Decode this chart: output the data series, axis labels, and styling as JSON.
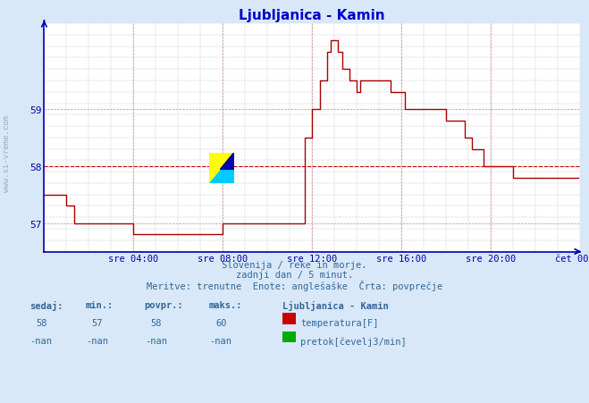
{
  "title": "Ljubljanica - Kamin",
  "bg_color": "#d8e8f8",
  "plot_bg_color": "#ffffff",
  "line_color": "#aa0000",
  "avg_line_color": "#cc0000",
  "grid_major_color": "#cc8888",
  "grid_minor_color": "#ccccdd",
  "axis_color": "#0000aa",
  "title_color": "#0000cc",
  "text_color": "#336699",
  "yticks": [
    57,
    58,
    59
  ],
  "ylim": [
    56.5,
    60.5
  ],
  "xlim": [
    0,
    288
  ],
  "avg_value": 58.0,
  "footer_line1": "Slovenija / reke in morje.",
  "footer_line2": "zadnji dan / 5 minut.",
  "footer_line3": "Meritve: trenutne  Enote: anglešaške  Črta: povprečje",
  "legend_title": "Ljubljanica - Kamin",
  "legend_temp_label": "temperatura[F]",
  "legend_flow_label": "pretok[čevelj3/min]",
  "table_headers": [
    "sedaj:",
    "min.:",
    "povpr.:",
    "maks.:"
  ],
  "table_temp": [
    "58",
    "57",
    "58",
    "60"
  ],
  "table_flow": [
    "-nan",
    "-nan",
    "-nan",
    "-nan"
  ],
  "xtick_labels": [
    "sre 04:00",
    "sre 08:00",
    "sre 12:00",
    "sre 16:00",
    "sre 20:00",
    "čet 00:00"
  ],
  "xtick_positions": [
    48,
    96,
    144,
    192,
    240,
    288
  ],
  "temperature_data": [
    57.5,
    57.5,
    57.5,
    57.5,
    57.5,
    57.5,
    57.5,
    57.5,
    57.5,
    57.5,
    57.5,
    57.5,
    57.3,
    57.3,
    57.3,
    57.3,
    57.0,
    57.0,
    57.0,
    57.0,
    57.0,
    57.0,
    57.0,
    57.0,
    57.0,
    57.0,
    57.0,
    57.0,
    57.0,
    57.0,
    57.0,
    57.0,
    57.0,
    57.0,
    57.0,
    57.0,
    57.0,
    57.0,
    57.0,
    57.0,
    57.0,
    57.0,
    57.0,
    57.0,
    57.0,
    57.0,
    57.0,
    57.0,
    56.8,
    56.8,
    56.8,
    56.8,
    56.8,
    56.8,
    56.8,
    56.8,
    56.8,
    56.8,
    56.8,
    56.8,
    56.8,
    56.8,
    56.8,
    56.8,
    56.8,
    56.8,
    56.8,
    56.8,
    56.8,
    56.8,
    56.8,
    56.8,
    56.8,
    56.8,
    56.8,
    56.8,
    56.8,
    56.8,
    56.8,
    56.8,
    56.8,
    56.8,
    56.8,
    56.8,
    56.8,
    56.8,
    56.8,
    56.8,
    56.8,
    56.8,
    56.8,
    56.8,
    56.8,
    56.8,
    56.8,
    56.8,
    57.0,
    57.0,
    57.0,
    57.0,
    57.0,
    57.0,
    57.0,
    57.0,
    57.0,
    57.0,
    57.0,
    57.0,
    57.0,
    57.0,
    57.0,
    57.0,
    57.0,
    57.0,
    57.0,
    57.0,
    57.0,
    57.0,
    57.0,
    57.0,
    57.0,
    57.0,
    57.0,
    57.0,
    57.0,
    57.0,
    57.0,
    57.0,
    57.0,
    57.0,
    57.0,
    57.0,
    57.0,
    57.0,
    57.0,
    57.0,
    57.0,
    57.0,
    57.0,
    57.0,
    58.5,
    58.5,
    58.5,
    58.5,
    59.0,
    59.0,
    59.0,
    59.0,
    59.5,
    59.5,
    59.5,
    59.5,
    60.0,
    60.0,
    60.2,
    60.2,
    60.2,
    60.2,
    60.0,
    60.0,
    59.7,
    59.7,
    59.7,
    59.7,
    59.5,
    59.5,
    59.5,
    59.5,
    59.3,
    59.3,
    59.5,
    59.5,
    59.5,
    59.5,
    59.5,
    59.5,
    59.5,
    59.5,
    59.5,
    59.5,
    59.5,
    59.5,
    59.5,
    59.5,
    59.5,
    59.5,
    59.3,
    59.3,
    59.3,
    59.3,
    59.3,
    59.3,
    59.3,
    59.3,
    59.0,
    59.0,
    59.0,
    59.0,
    59.0,
    59.0,
    59.0,
    59.0,
    59.0,
    59.0,
    59.0,
    59.0,
    59.0,
    59.0,
    59.0,
    59.0,
    59.0,
    59.0,
    59.0,
    59.0,
    59.0,
    59.0,
    58.8,
    58.8,
    58.8,
    58.8,
    58.8,
    58.8,
    58.8,
    58.8,
    58.8,
    58.8,
    58.5,
    58.5,
    58.5,
    58.5,
    58.3,
    58.3,
    58.3,
    58.3,
    58.3,
    58.3,
    58.0,
    58.0,
    58.0,
    58.0,
    58.0,
    58.0,
    58.0,
    58.0,
    58.0,
    58.0,
    58.0,
    58.0,
    58.0,
    58.0,
    58.0,
    58.0,
    57.8,
    57.8,
    57.8,
    57.8,
    57.8,
    57.8,
    57.8,
    57.8,
    57.8,
    57.8,
    57.8,
    57.8,
    57.8,
    57.8,
    57.8,
    57.8,
    57.8,
    57.8,
    57.8,
    57.8,
    57.8,
    57.8,
    57.8,
    57.8,
    57.8,
    57.8,
    57.8,
    57.8,
    57.8,
    57.8,
    57.8,
    57.8,
    57.8,
    57.8,
    57.8,
    57.8
  ]
}
